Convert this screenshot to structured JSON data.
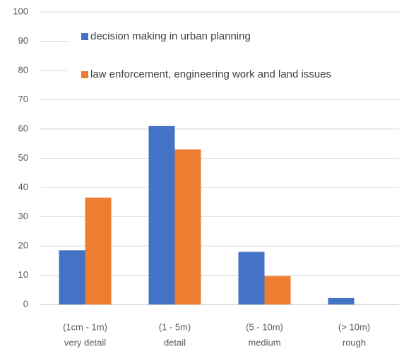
{
  "chart_data": {
    "type": "bar",
    "categories": [
      [
        "(1cm - 1m)",
        "very detail"
      ],
      [
        "(1 - 5m)",
        "detail"
      ],
      [
        "(5 - 10m)",
        "medium"
      ],
      [
        "(> 10m)",
        "rough"
      ]
    ],
    "series": [
      {
        "name": "decision making in urban planning",
        "color": "#4472c4",
        "values": [
          18.5,
          61,
          18,
          2.2
        ]
      },
      {
        "name": "law enforcement, engineering work and land issues",
        "color": "#ed7d31",
        "values": [
          36.5,
          53,
          9.7,
          0
        ]
      }
    ],
    "ylim": [
      0,
      100
    ],
    "yticks": [
      0,
      10,
      20,
      30,
      40,
      50,
      60,
      70,
      80,
      90,
      100
    ],
    "grid": true,
    "legend": "top"
  }
}
